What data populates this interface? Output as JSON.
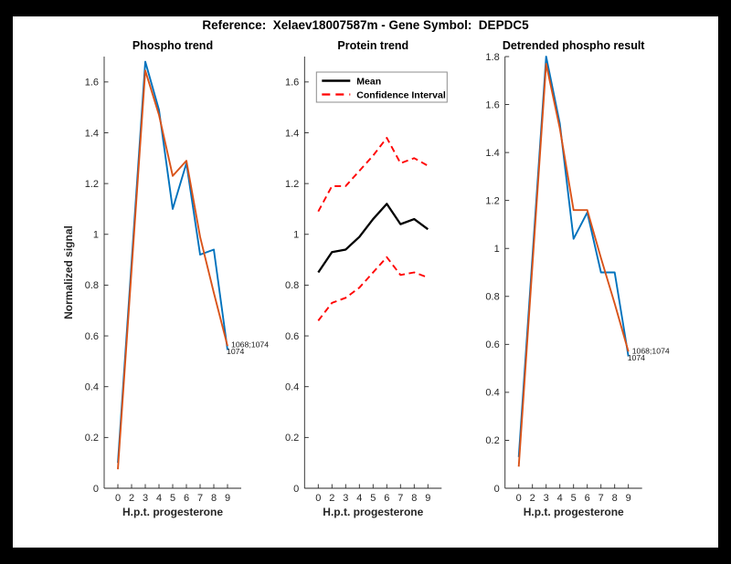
{
  "page": {
    "title": "Reference:  Xelaev18007587m - Gene Symbol:  DEPDC5"
  },
  "colors": {
    "page_background": "#000000",
    "figure_background": "#FFFFFF",
    "blue": "#0072BD",
    "orange": "#D95319",
    "red": "#FF0000",
    "mean_black": "#000000",
    "axis": "#262626",
    "legend_border": "#8C8C8C"
  },
  "chart_data": [
    {
      "type": "line",
      "title": "Phospho trend",
      "xlabel": "H.p.t. progesterone",
      "ylabel": "Normalized signal",
      "x": [
        0,
        2,
        3,
        4,
        5,
        6,
        7,
        8,
        9
      ],
      "x_tick_labels": [
        "0",
        "2",
        "3",
        "4",
        "5",
        "6",
        "7",
        "8",
        "9"
      ],
      "ylim": [
        0,
        1.7
      ],
      "ytick_step": 0.2,
      "ytick_labels": [
        "0",
        "0.2",
        "0.4",
        "0.6",
        "0.8",
        "1",
        "1.2",
        "1.4",
        "1.6"
      ],
      "grid": false,
      "series": [
        {
          "name": "phospho-site-1068-1074",
          "color_key": "blue",
          "dash": "solid",
          "width": 1.9,
          "values": [
            0.1,
            0.89,
            1.68,
            1.49,
            1.1,
            1.28,
            0.92,
            0.94,
            0.545
          ]
        },
        {
          "name": "phospho-site-1074",
          "color_key": "orange",
          "dash": "solid",
          "width": 1.9,
          "values": [
            0.075,
            0.86,
            1.645,
            1.47,
            1.23,
            1.29,
            0.99,
            0.77,
            0.56
          ]
        }
      ],
      "annotations": [
        {
          "text": "1068;1074",
          "row": 0
        },
        {
          "text": "1074",
          "row": 1
        }
      ]
    },
    {
      "type": "line",
      "title": "Protein trend",
      "xlabel": "H.p.t. progesterone",
      "ylabel": "",
      "x": [
        0,
        2,
        3,
        4,
        5,
        6,
        7,
        8,
        9
      ],
      "x_tick_labels": [
        "0",
        "2",
        "3",
        "4",
        "5",
        "6",
        "7",
        "8",
        "9"
      ],
      "ylim": [
        0,
        1.7
      ],
      "ytick_step": 0.2,
      "ytick_labels": [
        "0",
        "0.2",
        "0.4",
        "0.6",
        "0.8",
        "1",
        "1.2",
        "1.4",
        "1.6"
      ],
      "grid": false,
      "legend": {
        "position": "northeast",
        "entries": [
          {
            "label": "Mean",
            "color_key": "mean_black",
            "dash": "solid"
          },
          {
            "label": "Confidence Interval",
            "color_key": "red",
            "dash": "dashed"
          }
        ]
      },
      "series": [
        {
          "name": "protein-mean",
          "color_key": "mean_black",
          "dash": "solid",
          "width": 2.3,
          "values": [
            0.85,
            0.93,
            0.94,
            0.99,
            1.06,
            1.12,
            1.04,
            1.06,
            1.02
          ]
        },
        {
          "name": "confidence-interval-upper",
          "color_key": "red",
          "dash": "dashed",
          "width": 1.9,
          "values": [
            1.09,
            1.19,
            1.19,
            1.25,
            1.31,
            1.38,
            1.28,
            1.3,
            1.27
          ]
        },
        {
          "name": "confidence-interval-lower",
          "color_key": "red",
          "dash": "dashed",
          "width": 1.9,
          "values": [
            0.66,
            0.73,
            0.75,
            0.79,
            0.85,
            0.91,
            0.84,
            0.85,
            0.83
          ]
        }
      ],
      "annotations": []
    },
    {
      "type": "line",
      "title": "Detrended phospho result",
      "xlabel": "H.p.t. progesterone",
      "ylabel": "",
      "x": [
        0,
        2,
        3,
        4,
        5,
        6,
        7,
        8,
        9
      ],
      "x_tick_labels": [
        "0",
        "2",
        "3",
        "4",
        "5",
        "6",
        "7",
        "8",
        "9"
      ],
      "ylim": [
        0,
        1.8
      ],
      "ytick_step": 0.2,
      "ytick_labels": [
        "0",
        "0.2",
        "0.4",
        "0.6",
        "0.8",
        "1",
        "1.2",
        "1.4",
        "1.6",
        "1.8"
      ],
      "grid": false,
      "series": [
        {
          "name": "detrended-site-1068-1074",
          "color_key": "blue",
          "dash": "solid",
          "width": 1.9,
          "values": [
            0.13,
            0.965,
            1.8,
            1.52,
            1.04,
            1.15,
            0.9,
            0.9,
            0.55
          ]
        },
        {
          "name": "detrended-site-1074",
          "color_key": "orange",
          "dash": "solid",
          "width": 1.9,
          "values": [
            0.09,
            0.93,
            1.77,
            1.5,
            1.16,
            1.16,
            0.96,
            0.77,
            0.57
          ]
        }
      ],
      "annotations": [
        {
          "text": "1068;1074",
          "row": 0
        },
        {
          "text": "1074",
          "row": 1
        }
      ]
    }
  ]
}
